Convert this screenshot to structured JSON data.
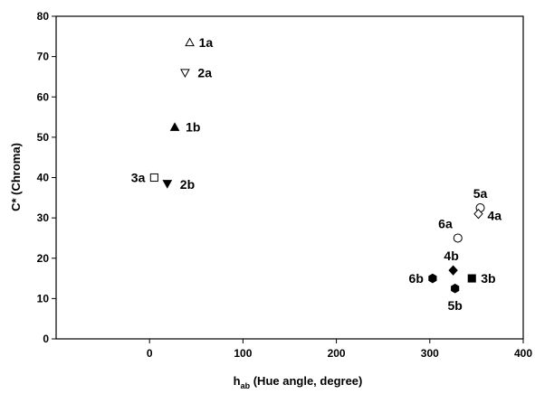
{
  "chart_data": {
    "type": "scatter",
    "xlabel": "h (Hue angle, degree)",
    "xlabel_main": "h",
    "xlabel_sub": "ab",
    "xlabel_rest": " (Hue angle, degree)",
    "ylabel": "C* (Chroma)",
    "xlim": [
      -100,
      400
    ],
    "ylim": [
      0,
      80
    ],
    "xticks": [
      0,
      100,
      200,
      300,
      400
    ],
    "yticks": [
      0,
      10,
      20,
      30,
      40,
      50,
      60,
      70,
      80
    ],
    "grid": false,
    "points": [
      {
        "label": "1a",
        "x": 43,
        "y": 73.5,
        "marker": "triangle-up-open"
      },
      {
        "label": "2a",
        "x": 38,
        "y": 66,
        "marker": "triangle-down-open"
      },
      {
        "label": "1b",
        "x": 27,
        "y": 52.5,
        "marker": "triangle-up-filled"
      },
      {
        "label": "3a",
        "x": 5,
        "y": 40,
        "marker": "square-open"
      },
      {
        "label": "2b",
        "x": 19,
        "y": 38.5,
        "marker": "triangle-down-filled"
      },
      {
        "label": "5a",
        "x": 354,
        "y": 32.5,
        "marker": "circle-open"
      },
      {
        "label": "4a",
        "x": 352,
        "y": 31,
        "marker": "diamond-open"
      },
      {
        "label": "6a",
        "x": 330,
        "y": 25,
        "marker": "circle-open"
      },
      {
        "label": "4b",
        "x": 325,
        "y": 17,
        "marker": "diamond-filled"
      },
      {
        "label": "6b",
        "x": 303,
        "y": 15,
        "marker": "hexagon-filled"
      },
      {
        "label": "3b",
        "x": 345,
        "y": 15,
        "marker": "square-filled"
      },
      {
        "label": "5b",
        "x": 327,
        "y": 12.5,
        "marker": "hexagon-filled"
      }
    ]
  }
}
